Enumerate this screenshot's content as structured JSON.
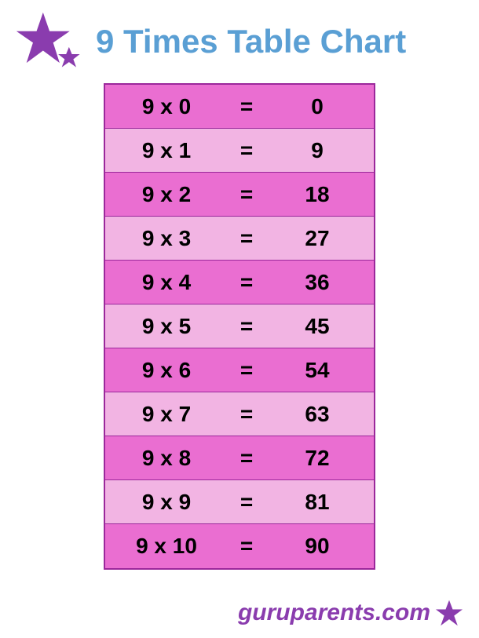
{
  "title": "9 Times Table Chart",
  "title_color": "#5a9fd4",
  "star_color": "#8a3cae",
  "table": {
    "border_color": "#9b289b",
    "text_color": "#000000",
    "row_even_color": "#ea6ed1",
    "row_odd_color": "#f2b4e3",
    "rows": [
      {
        "expr": "9 x 0",
        "eq": "=",
        "res": "0"
      },
      {
        "expr": "9 x 1",
        "eq": "=",
        "res": "9"
      },
      {
        "expr": "9 x 2",
        "eq": "=",
        "res": "18"
      },
      {
        "expr": "9 x 3",
        "eq": "=",
        "res": "27"
      },
      {
        "expr": "9 x 4",
        "eq": "=",
        "res": "36"
      },
      {
        "expr": "9 x 5",
        "eq": "=",
        "res": "45"
      },
      {
        "expr": "9 x 6",
        "eq": "=",
        "res": "54"
      },
      {
        "expr": "9 x 7",
        "eq": "=",
        "res": "63"
      },
      {
        "expr": "9 x 8",
        "eq": "=",
        "res": "72"
      },
      {
        "expr": "9 x 9",
        "eq": "=",
        "res": "81"
      },
      {
        "expr": "9 x 10",
        "eq": "=",
        "res": "90"
      }
    ]
  },
  "footer": {
    "text": "guruparents.com",
    "color": "#8a3cae"
  }
}
